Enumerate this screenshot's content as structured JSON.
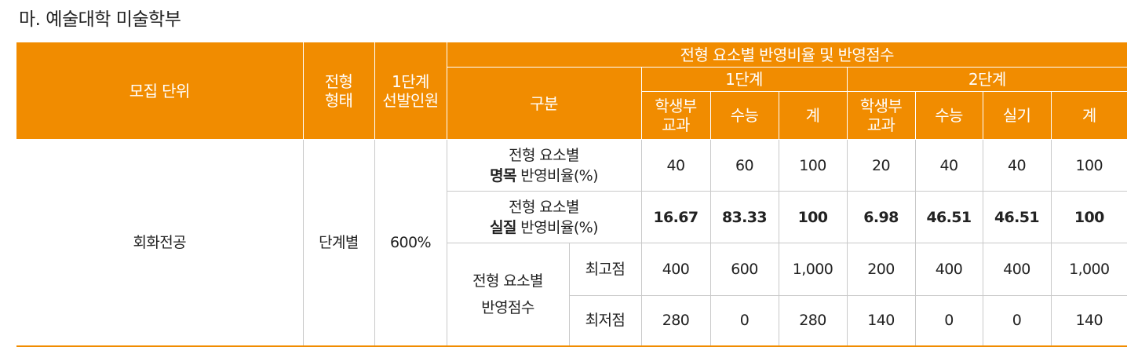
{
  "title": "마. 예술대학 미술학부",
  "header": {
    "unit": "모집 단위",
    "type_line1": "전형",
    "type_line2": "형태",
    "stage1_line1": "1단계",
    "stage1_line2": "선발인원",
    "reflection": "전형 요소별 반영비율 및 반영점수",
    "category": "구분",
    "stage1": "1단계",
    "stage2": "2단계",
    "s1_cols": [
      {
        "line1": "학생부",
        "line2": "교과"
      },
      {
        "line1": "수능",
        "line2": ""
      },
      {
        "line1": "계",
        "line2": ""
      }
    ],
    "s2_cols": [
      {
        "line1": "학생부",
        "line2": "교과"
      },
      {
        "line1": "수능",
        "line2": ""
      },
      {
        "line1": "실기",
        "line2": ""
      },
      {
        "line1": "계",
        "line2": ""
      }
    ]
  },
  "row": {
    "unit": "회화전공",
    "type": "단계별",
    "selection": "600%"
  },
  "rows": {
    "nominal": {
      "line1": "전형 요소별",
      "bold": "명목",
      "rest": " 반영비율(%)",
      "values": [
        "40",
        "60",
        "100",
        "20",
        "40",
        "40",
        "100"
      ]
    },
    "actual": {
      "line1": "전형 요소별",
      "bold": "실질",
      "rest": " 반영비율(%)",
      "values": [
        "16.67",
        "83.33",
        "100",
        "6.98",
        "46.51",
        "46.51",
        "100"
      ]
    },
    "score": {
      "line1": "전형 요소별",
      "line2": "반영점수",
      "max_label": "최고점",
      "max_values": [
        "400",
        "600",
        "1,000",
        "200",
        "400",
        "400",
        "1,000"
      ],
      "min_label": "최저점",
      "min_values": [
        "280",
        "0",
        "280",
        "140",
        "0",
        "0",
        "140"
      ]
    }
  },
  "colors": {
    "header_bg": "#f18c00",
    "header_text": "#ffffff",
    "grid": "#c9c9c9"
  }
}
